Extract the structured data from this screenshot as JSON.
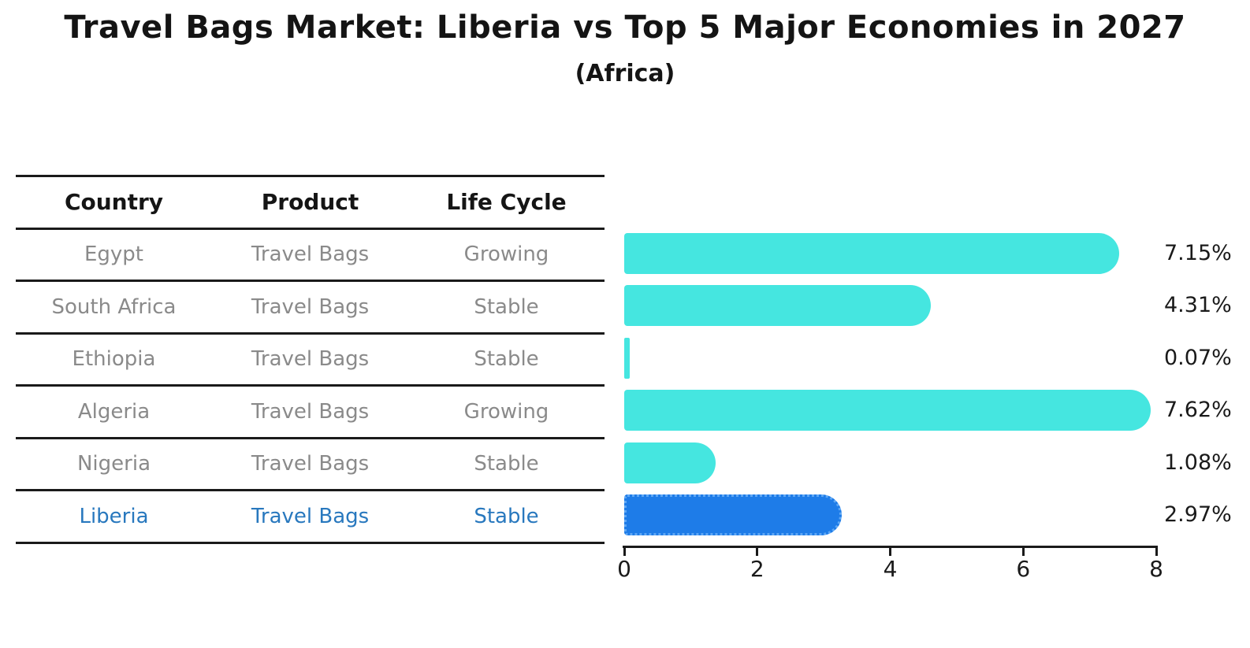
{
  "title": "Travel Bags Market: Liberia vs Top 5 Major Economies in 2027",
  "subtitle": "(Africa)",
  "table": {
    "headers": [
      "Country",
      "Product",
      "Life Cycle"
    ],
    "rows": [
      {
        "country": "Egypt",
        "product": "Travel Bags",
        "life_cycle": "Growing",
        "highlight": false
      },
      {
        "country": "South Africa",
        "product": "Travel Bags",
        "life_cycle": "Stable",
        "highlight": false
      },
      {
        "country": "Ethiopia",
        "product": "Travel Bags",
        "life_cycle": "Stable",
        "highlight": false
      },
      {
        "country": "Algeria",
        "product": "Travel Bags",
        "life_cycle": "Growing",
        "highlight": false
      },
      {
        "country": "Nigeria",
        "product": "Travel Bags",
        "life_cycle": "Stable",
        "highlight": false
      },
      {
        "country": "Liberia",
        "product": "Travel Bags",
        "life_cycle": "Stable",
        "highlight": true
      }
    ]
  },
  "chart_data": {
    "type": "bar",
    "orientation": "horizontal",
    "title": "Travel Bags Market: Liberia vs Top 5 Major Economies in 2027",
    "subtitle": "(Africa)",
    "categories": [
      "Egypt",
      "South Africa",
      "Ethiopia",
      "Algeria",
      "Nigeria",
      "Liberia"
    ],
    "values": [
      7.15,
      4.31,
      0.07,
      7.62,
      1.08,
      2.97
    ],
    "value_labels": [
      "7.15%",
      "4.31%",
      "0.07%",
      "7.62%",
      "1.08%",
      "2.97%"
    ],
    "highlight_category": "Liberia",
    "x_ticks": [
      "0",
      "2",
      "4",
      "6",
      "8"
    ],
    "xlim": [
      0,
      8
    ],
    "grid": false,
    "legend_position": "none",
    "colors": {
      "bar": "#45E6E0",
      "highlight_bar": "#1E7CE8",
      "highlight_bar_edge": "#5FA8F5",
      "highlight_text": "#2878BE",
      "row_text": "#8A8A8A",
      "axis": "#1A1A1A"
    }
  }
}
